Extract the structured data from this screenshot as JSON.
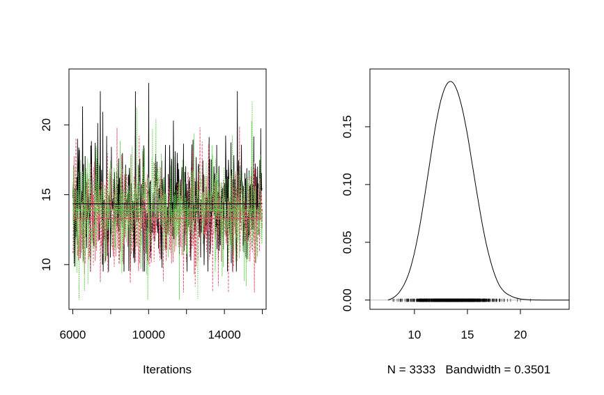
{
  "chart_data": [
    {
      "type": "line",
      "panel": "trace",
      "xlabel": "Iterations",
      "ylabel": "",
      "xlim": [
        5800,
        16200
      ],
      "ylim": [
        6.8,
        24.0
      ],
      "x_ticks": [
        6000,
        10000,
        14000
      ],
      "y_ticks": [
        10,
        15,
        20
      ],
      "x_tick_labels": [
        "6000",
        "10000",
        "14000"
      ],
      "y_tick_labels": [
        "10",
        "15",
        "20"
      ],
      "iterations_range": [
        6000,
        16000
      ],
      "series": [
        {
          "color": "#000000",
          "style": "solid",
          "mean": 14.35,
          "low_typical": 10.5,
          "high_typical": 18.5,
          "max": 23.0,
          "min": 9.5
        },
        {
          "color": "#DF536B",
          "style": "dashed",
          "mean": 13.3,
          "low_typical": 9.5,
          "high_typical": 17.5,
          "max": 20.5,
          "min": 8.0
        },
        {
          "color": "#61D04F",
          "style": "dotted",
          "mean": 13.9,
          "low_typical": 10.0,
          "high_typical": 18.0,
          "max": 22.0,
          "min": 7.5
        }
      ],
      "grid": false,
      "legend": "none"
    },
    {
      "type": "line",
      "panel": "density",
      "xlabel": "N = 3333   Bandwidth = 0.3501",
      "ylabel": "",
      "xlim": [
        5.8,
        24.6
      ],
      "ylim": [
        -0.008,
        0.2
      ],
      "x_ticks": [
        10,
        15,
        20
      ],
      "y_ticks": [
        0.0,
        0.05,
        0.1,
        0.15
      ],
      "x_tick_labels": [
        "10",
        "15",
        "20"
      ],
      "y_tick_labels": [
        "0.00",
        "0.05",
        "0.10",
        "0.15"
      ],
      "density": {
        "x": [
          7.5,
          8.0,
          8.5,
          9.0,
          9.5,
          10.0,
          10.5,
          11.0,
          11.5,
          12.0,
          12.5,
          13.0,
          13.5,
          14.0,
          14.5,
          15.0,
          15.5,
          16.0,
          16.5,
          17.0,
          17.5,
          18.0,
          18.5,
          19.0,
          19.5,
          20.0,
          20.5,
          21.0,
          21.5,
          22.0,
          22.5,
          23.0,
          24.6
        ],
        "y": [
          0.0,
          0.002,
          0.006,
          0.013,
          0.024,
          0.041,
          0.064,
          0.092,
          0.122,
          0.151,
          0.173,
          0.186,
          0.189,
          0.182,
          0.166,
          0.143,
          0.115,
          0.087,
          0.061,
          0.04,
          0.024,
          0.013,
          0.007,
          0.004,
          0.002,
          0.001,
          0.0005,
          0.0002,
          0.0001,
          0.0,
          0.0,
          0.0,
          0.0
        ]
      },
      "rug_range": [
        7.8,
        23.0
      ],
      "grid": false,
      "legend": "none"
    }
  ]
}
